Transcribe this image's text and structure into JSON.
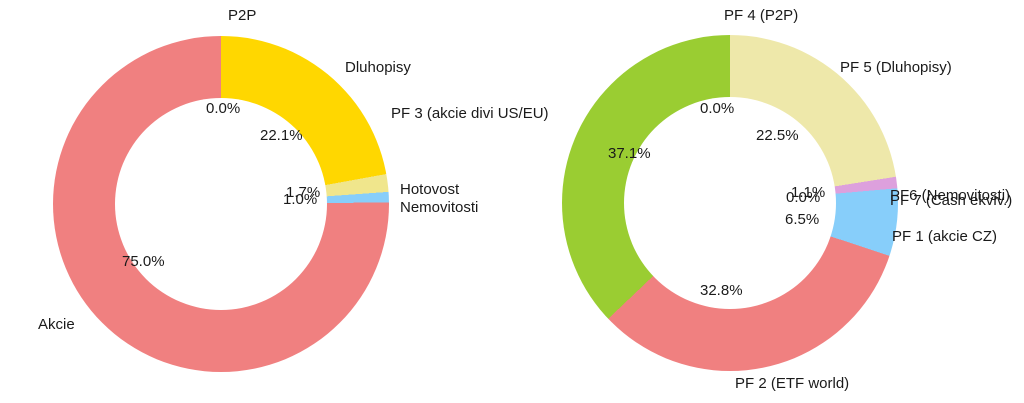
{
  "colors": {
    "background": "#ffffff",
    "text": "#1a1a1a",
    "akcie_red": "#F08080",
    "dluhopisy_gold": "#FFD700",
    "hotovost_khaki": "#F0E68C",
    "nemovitosti_blue": "#87CEFA",
    "pf5_paleyellow": "#EEE8AA",
    "pf6_plum": "#DDA0DD",
    "pf3_green": "#9ACD32"
  },
  "chart_data": [
    {
      "type": "pie",
      "subtype": "donut",
      "title": "",
      "unit": "%",
      "start_angle_deg": 90,
      "direction": "clockwise",
      "hole_ratio": 0.63,
      "legend": "none",
      "label_position": "outside",
      "pct_position": "inside-hole",
      "slices": [
        {
          "label": "P2P",
          "value": 0.0,
          "color": null
        },
        {
          "label": "Dluhopisy",
          "value": 22.1,
          "color": "#FFD700"
        },
        {
          "label": "Hotovost",
          "value": 1.7,
          "color": "#F0E68C"
        },
        {
          "label": "Nemovitosti",
          "value": 1.0,
          "color": "#87CEFA"
        },
        {
          "label": "Akcie",
          "value": 75.0,
          "color": "#F08080"
        }
      ],
      "pct_labels": [
        "0.0%",
        "22.1%",
        "1.7%",
        "1.0%",
        "75.0%"
      ]
    },
    {
      "type": "pie",
      "subtype": "donut",
      "title": "",
      "unit": "%",
      "start_angle_deg": 90,
      "direction": "clockwise",
      "hole_ratio": 0.63,
      "legend": "none",
      "label_position": "outside",
      "pct_position": "inside-hole",
      "slices": [
        {
          "label": "PF 4 (P2P)",
          "value": 0.0,
          "color": null
        },
        {
          "label": "PF 5 (Dluhopisy)",
          "value": 22.5,
          "color": "#EEE8AA"
        },
        {
          "label": "PF6 (Nemovitosti)",
          "value": 1.1,
          "color": "#DDA0DD"
        },
        {
          "label": "PF 7 (Cash ekviv.)",
          "value": 0.0,
          "color": null
        },
        {
          "label": "PF 1 (akcie CZ)",
          "value": 6.5,
          "color": "#87CEFA"
        },
        {
          "label": "PF 2 (ETF world)",
          "value": 32.8,
          "color": "#F08080"
        },
        {
          "label": "PF 3 (akcie divi US/EU)",
          "value": 37.1,
          "color": "#9ACD32"
        }
      ],
      "pct_labels": [
        "0.0%",
        "22.5%",
        "1.1%",
        "0.0%",
        "6.5%",
        "32.8%",
        "37.1%"
      ]
    }
  ]
}
